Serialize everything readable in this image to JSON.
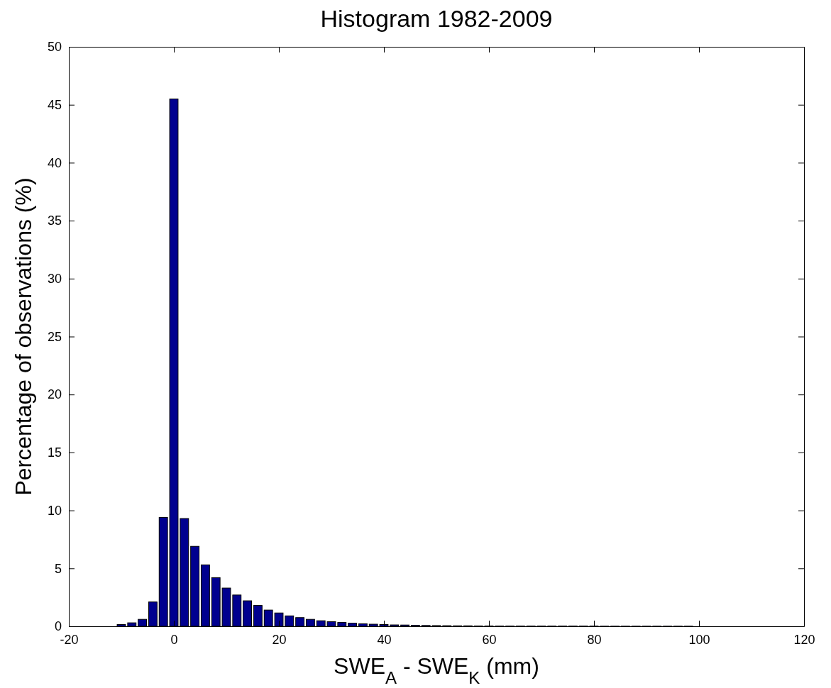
{
  "chart_data": {
    "type": "histogram",
    "title": "Histogram 1982-2009",
    "xlabel": "SWE$_{A}$ - SWE$_{K}$ (mm)",
    "ylabel": "Percentage of observations (%)",
    "bins": [
      -11,
      -9,
      -7,
      -5,
      -3,
      -1,
      1,
      3,
      5,
      7,
      9,
      11,
      13,
      15,
      17,
      19,
      21,
      23,
      25,
      27,
      29,
      31,
      33,
      35,
      37,
      39,
      41,
      43,
      45,
      47,
      49,
      51,
      53,
      55,
      57,
      59,
      61,
      63,
      65,
      67,
      69,
      71,
      73,
      75,
      77,
      79,
      81,
      83,
      85,
      87,
      89,
      91,
      93,
      95,
      97,
      99
    ],
    "values": [
      0.15,
      0.3,
      0.6,
      2.1,
      9.4,
      45.5,
      9.3,
      6.9,
      5.3,
      4.2,
      3.3,
      2.7,
      2.2,
      1.8,
      1.4,
      1.15,
      0.9,
      0.75,
      0.6,
      0.48,
      0.4,
      0.33,
      0.27,
      0.22,
      0.18,
      0.15,
      0.12,
      0.11,
      0.08,
      0.07,
      0.06,
      0.05,
      0.04,
      0.04,
      0.03,
      0.03,
      0.02,
      0.02,
      0.02,
      0.02,
      0.02,
      0.02,
      0.02,
      0.02,
      0.02,
      0.02,
      0.01,
      0.01,
      0.01,
      0.01,
      0.01,
      0.01,
      0.01,
      0.01,
      0.01
    ],
    "color": "#00008f",
    "xlim": [
      -20,
      120
    ],
    "xticks": [
      -20,
      0,
      20,
      40,
      60,
      80,
      100,
      120
    ],
    "ylim": [
      0,
      50
    ],
    "yticks": [
      0,
      5,
      10,
      15,
      20,
      25,
      30,
      35,
      40,
      45,
      50
    ],
    "grid": false
  }
}
